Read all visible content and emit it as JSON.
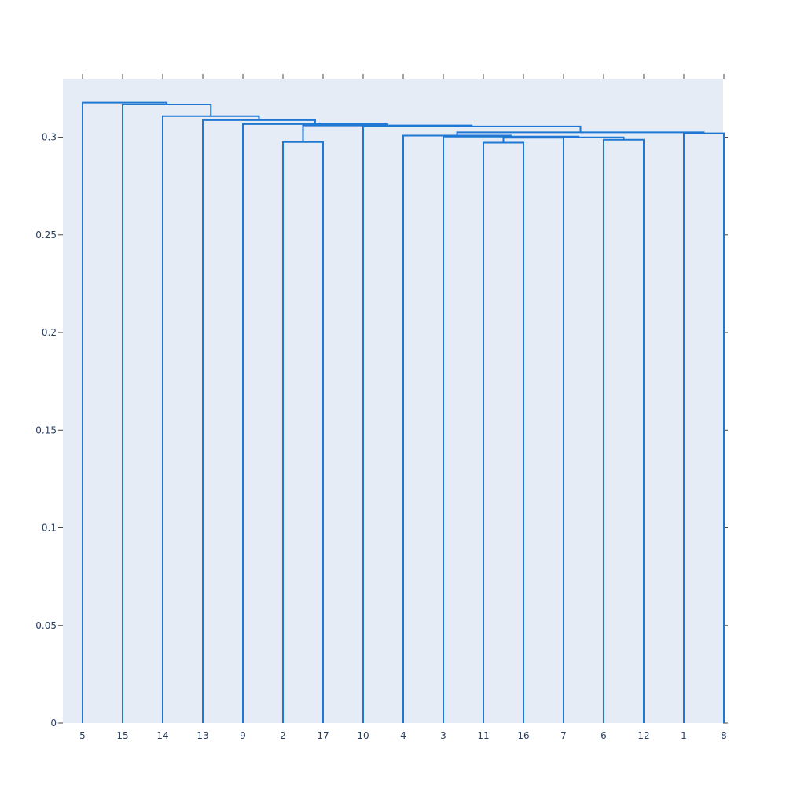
{
  "chart_data": {
    "type": "dendrogram",
    "leaves": [
      "5",
      "15",
      "14",
      "13",
      "9",
      "2",
      "17",
      "10",
      "4",
      "3",
      "11",
      "16",
      "7",
      "6",
      "12",
      "1",
      "8"
    ],
    "ylim": [
      0,
      0.33
    ],
    "yticks": [
      0,
      0.05,
      0.1,
      0.15,
      0.2,
      0.25,
      0.3
    ],
    "ytick_labels": [
      "0",
      "0.05",
      "0.1",
      "0.15",
      "0.2",
      "0.25",
      "0.3"
    ],
    "grid": false,
    "colors": {
      "link": "#1f77d4",
      "plot_bg": "#e5ecf6",
      "paper_bg": "#ffffff",
      "tick_label": "#2a3f5f"
    },
    "merges": [
      {
        "left": "2",
        "right": "17",
        "height": 0.2975
      },
      {
        "left": "11",
        "right": "16",
        "height": 0.2972
      },
      {
        "left": "6",
        "right": "12",
        "height": 0.2987
      },
      {
        "left": "[11,16]",
        "right": "7",
        "height": 0.2997
      },
      {
        "left": "[[11,16],7]",
        "right": "[6,12]",
        "height": 0.2999
      },
      {
        "left": "3",
        "right": "[[[11,16],7],[6,12]]",
        "height": 0.3003
      },
      {
        "left": "4",
        "right": "[3,...]",
        "height": 0.3008
      },
      {
        "left": "1",
        "right": "8",
        "height": 0.302
      },
      {
        "left": "[4,3,...]",
        "right": "[1,8]",
        "height": 0.3025
      },
      {
        "left": "10",
        "right": "[4,...,8]",
        "height": 0.3055
      },
      {
        "left": "[2,17]",
        "right": "[10,...,8]",
        "height": 0.306
      },
      {
        "left": "9",
        "right": "[2,17,10,...,8]",
        "height": 0.3067
      },
      {
        "left": "13",
        "right": "[9,...]",
        "height": 0.3087
      },
      {
        "left": "14",
        "right": "[13,...]",
        "height": 0.3108
      },
      {
        "left": "15",
        "right": "[14,...]",
        "height": 0.3167
      },
      {
        "left": "5",
        "right": "[15,...]",
        "height": 0.3177
      }
    ]
  }
}
